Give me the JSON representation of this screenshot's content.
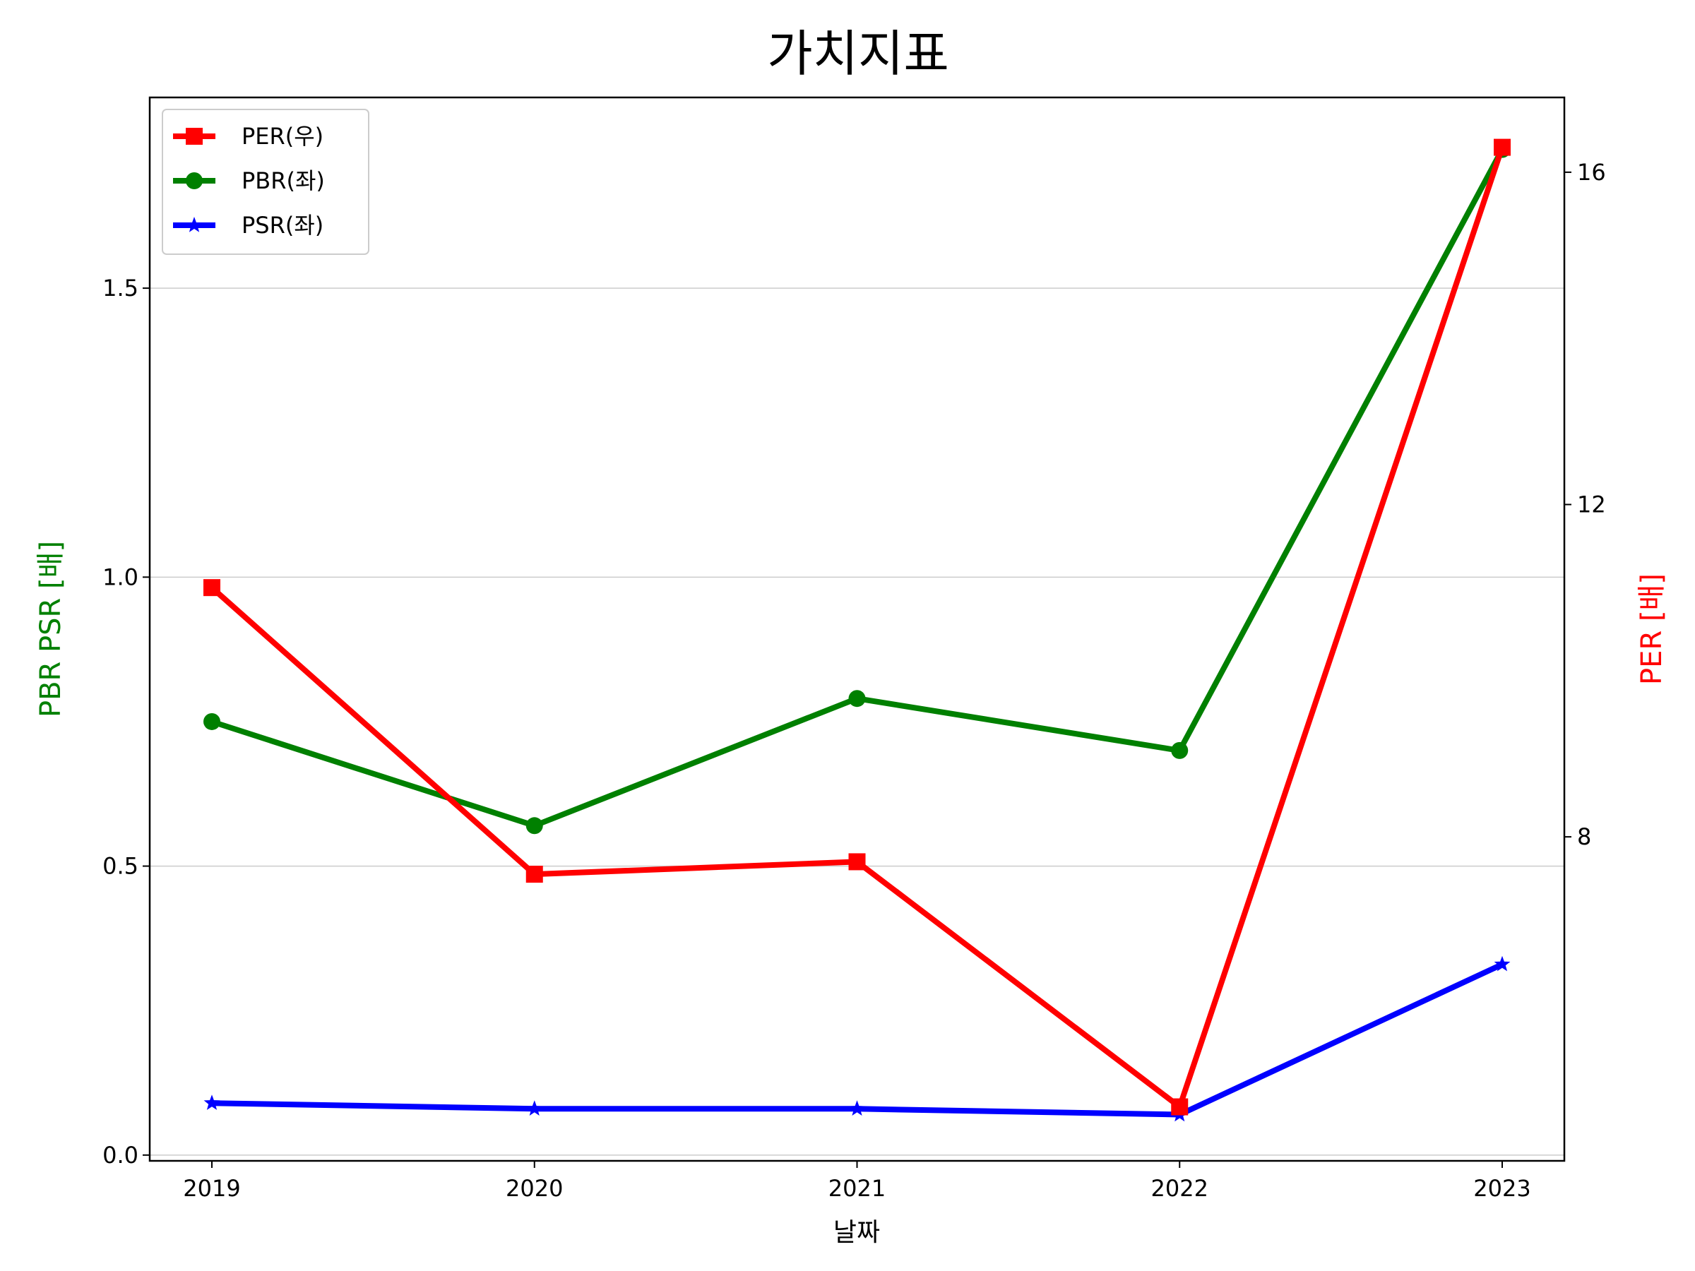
{
  "chart_data": {
    "type": "line",
    "title": "가치지표",
    "xlabel": "날짜",
    "ylabel_left": "PBR PSR [배]",
    "ylabel_right": "PER [배]",
    "categories": [
      "2019",
      "2020",
      "2021",
      "2022",
      "2023"
    ],
    "ylim_left": [
      -0.01,
      1.83
    ],
    "ylim_right": [
      4.1,
      16.9
    ],
    "yticks_left": [
      "0.0",
      "0.5",
      "1.0",
      "1.5"
    ],
    "yticks_left_values": [
      0,
      0.5,
      1.0,
      1.5
    ],
    "yticks_right": [
      "8",
      "12",
      "16"
    ],
    "yticks_right_values": [
      8,
      12,
      16
    ],
    "grid": "horizontal (left axis)",
    "legend_position": "top-left",
    "series": [
      {
        "name": "PER(우)",
        "axis": "right",
        "color": "#ff0000",
        "marker": "square",
        "values": [
          11.0,
          7.55,
          7.7,
          4.75,
          16.3
        ]
      },
      {
        "name": "PBR(좌)",
        "axis": "left",
        "color": "#008000",
        "marker": "circle",
        "values": [
          0.75,
          0.57,
          0.79,
          0.7,
          1.74
        ]
      },
      {
        "name": "PSR(좌)",
        "axis": "left",
        "color": "#0000ff",
        "marker": "star",
        "values": [
          0.09,
          0.08,
          0.08,
          0.07,
          0.33
        ]
      }
    ]
  }
}
